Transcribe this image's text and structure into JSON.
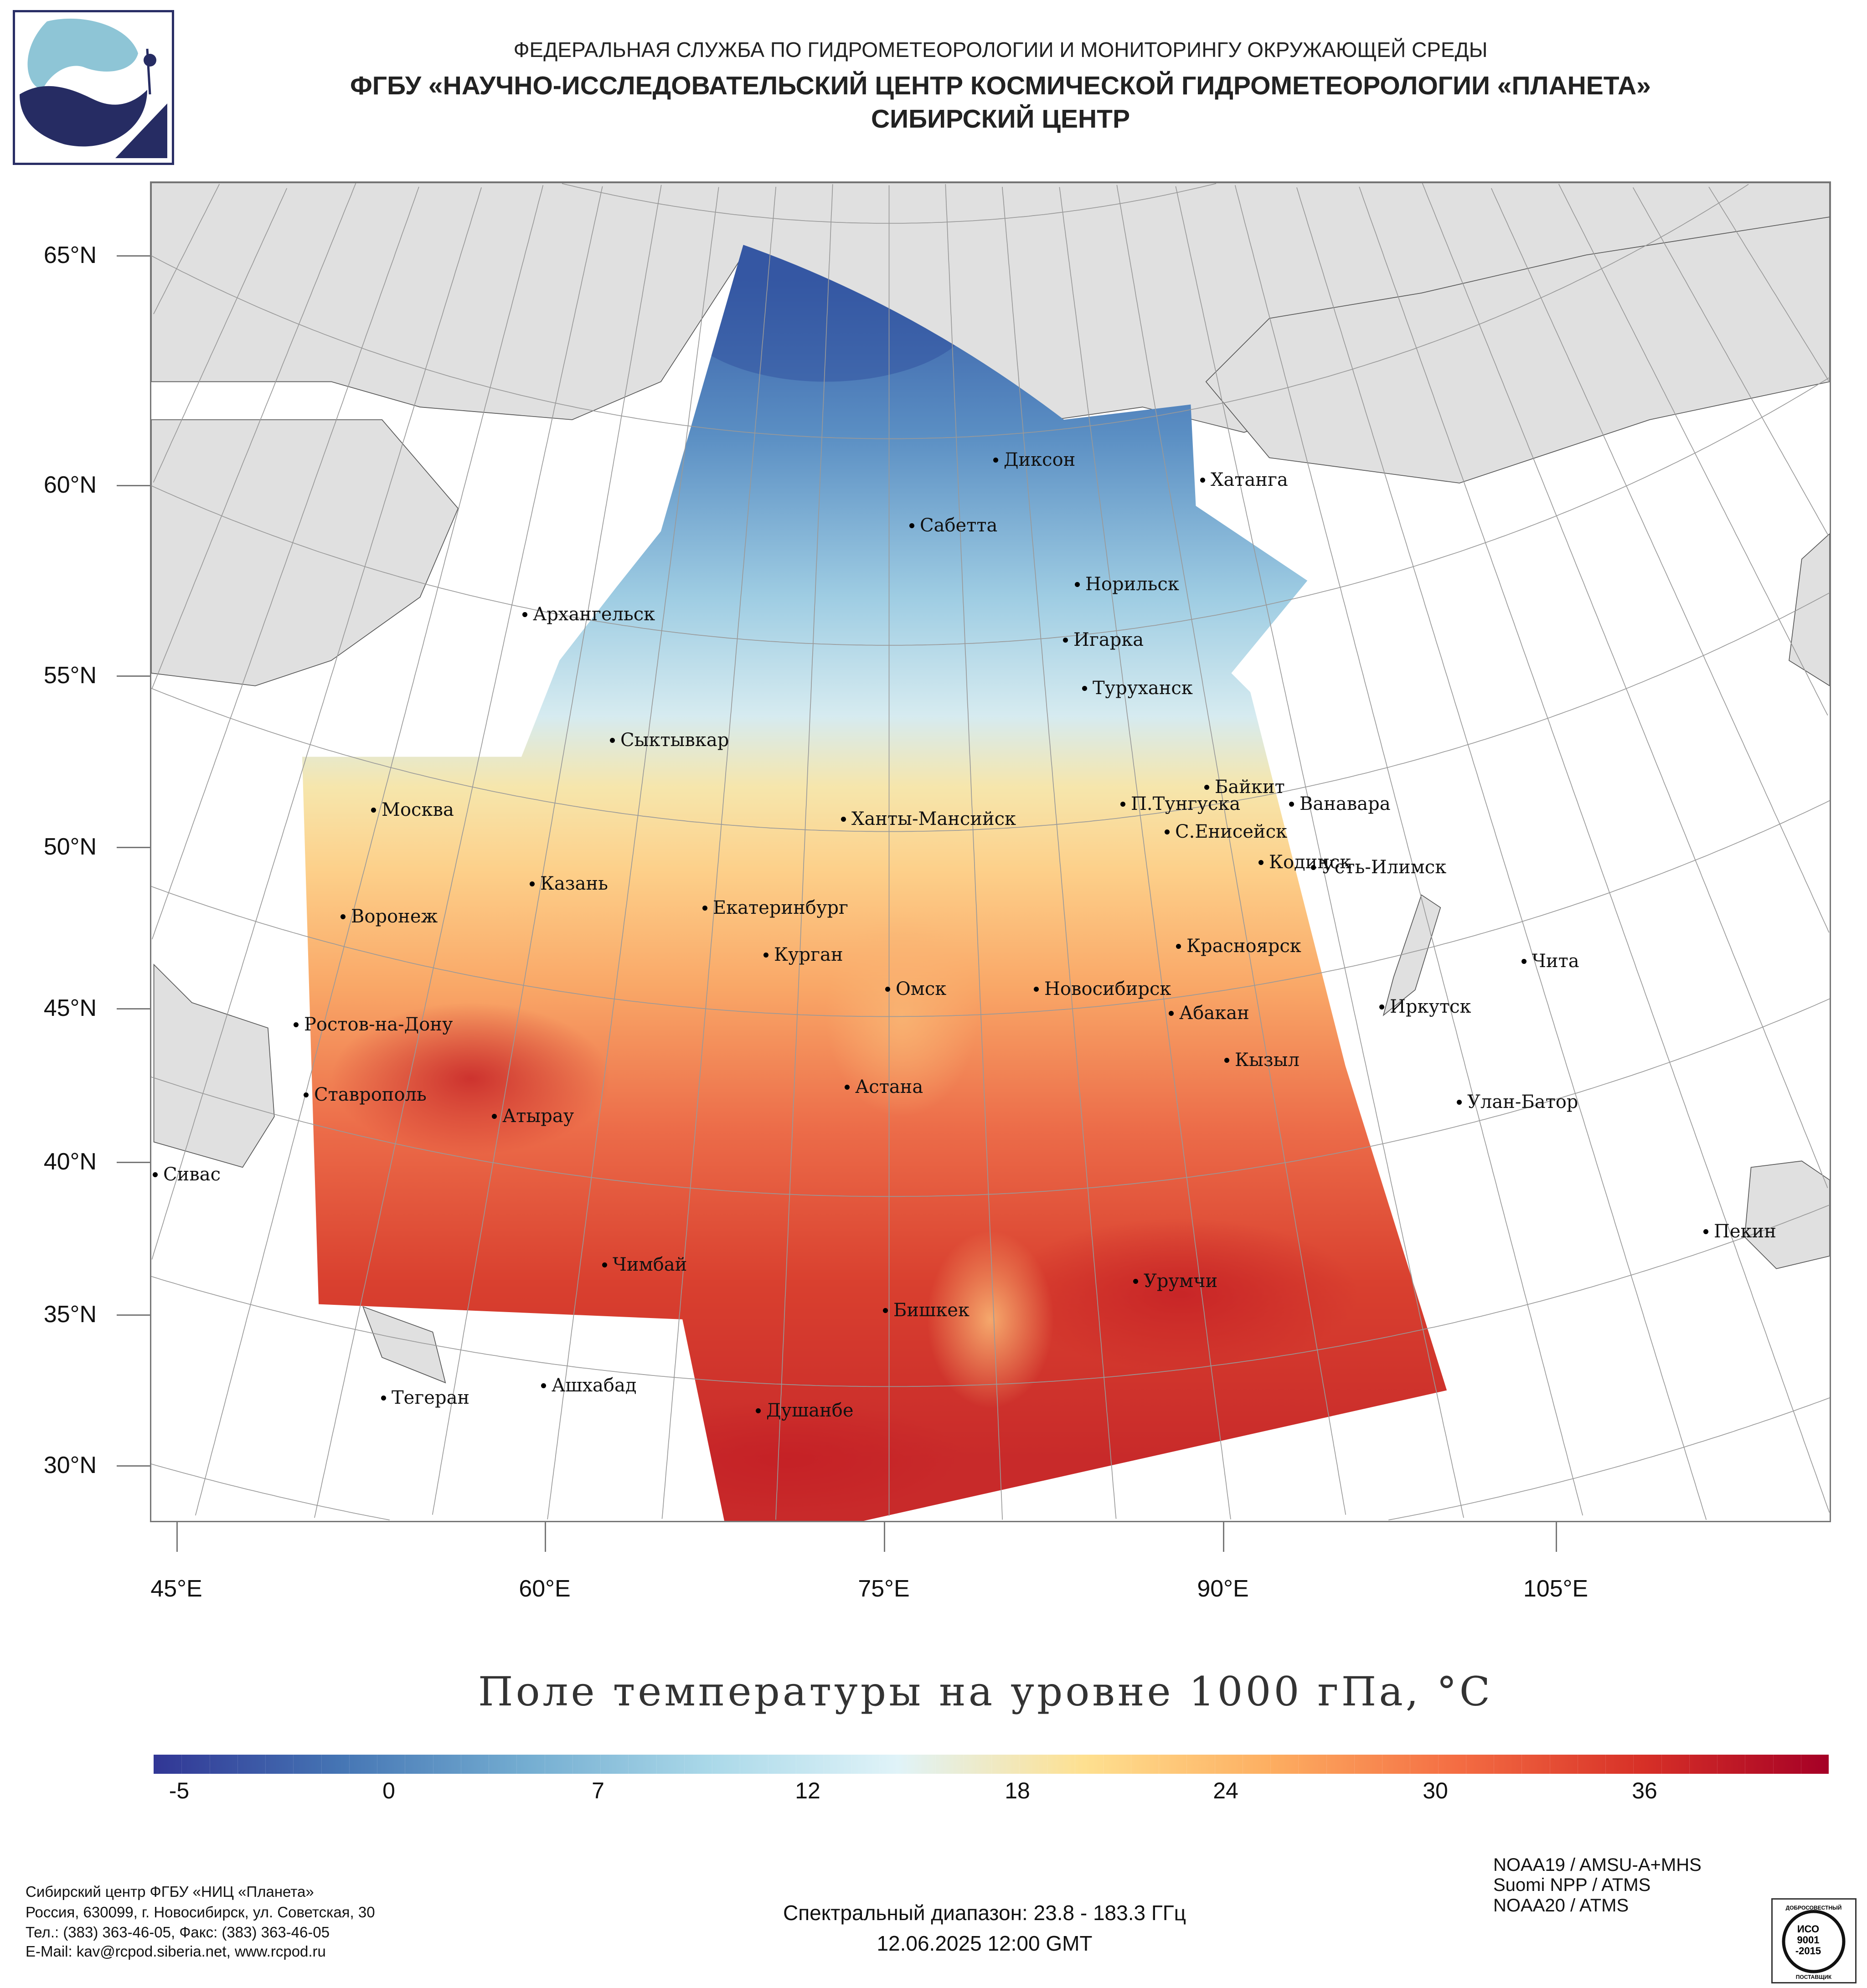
{
  "header": {
    "line1": "ФЕДЕРАЛЬНАЯ СЛУЖБА ПО ГИДРОМЕТЕОРОЛОГИИ И МОНИТОРИНГУ ОКРУЖАЮЩЕЙ СРЕДЫ",
    "line2": "ФГБУ «НАУЧНО-ИССЛЕДОВАТЕЛЬСКИЙ ЦЕНТР КОСМИЧЕСКОЙ ГИДРОМЕТЕОРОЛОГИИ «ПЛАНЕТА»",
    "line3": "СИБИРСКИЙ ЦЕНТР"
  },
  "map": {
    "lat_labels": [
      "65°N",
      "60°N",
      "55°N",
      "50°N",
      "45°N",
      "40°N",
      "35°N",
      "30°N"
    ],
    "lon_labels": [
      "45°E",
      "60°E",
      "75°E",
      "90°E",
      "105°E"
    ],
    "cities": [
      "Диксон",
      "Хатанга",
      "Сабетта",
      "Норильск",
      "Архангельск",
      "Игарка",
      "Туруханск",
      "Сыктывкар",
      "Байкит",
      "П.Тунгуска",
      "Ванавара",
      "Москва",
      "Ханты-Мансийск",
      "С.Енисейск",
      "Кодинск",
      "Усть-Илимск",
      "Казань",
      "Екатеринбург",
      "Воронеж",
      "Красноярск",
      "Курган",
      "Чита",
      "Омск",
      "Новосибирск",
      "Иркутск",
      "Абакан",
      "Ростов-на-Дону",
      "Кызыл",
      "Астана",
      "Ставрополь",
      "Улан-Батор",
      "Атырау",
      "Сивас",
      "Пекин",
      "Чимбай",
      "Урумчи",
      "Бишкек",
      "Ашхабад",
      "Тегеран",
      "Душанбе"
    ]
  },
  "title": "Поле температуры на уровне 1000 гПа, °С",
  "colorbar": {
    "ticks": [
      "-5",
      "0",
      "7",
      "12",
      "18",
      "24",
      "30",
      "36"
    ],
    "colors": [
      "#313695",
      "#4575b4",
      "#74add1",
      "#abd9e9",
      "#e0f3f8",
      "#fee090",
      "#fdae61",
      "#f46d43",
      "#d73027",
      "#a50026"
    ]
  },
  "footer": {
    "org": [
      "Сибирский центр ФГБУ «НИЦ «Планета»",
      "Россия, 630099, г. Новосибирск, ул. Советская, 30",
      "Тел.: (383) 363-46-05, Факс: (383) 363-46-05",
      "E-Mail: kav@rcpod.siberia.net, www.rcpod.ru"
    ],
    "spectral": "Спектральный диапазон: 23.8 - 183.3 ГГц",
    "datetime": "12.06.2025 12:00 GMT",
    "satellites": [
      "NOAA19 / AMSU-A+MHS",
      "Suomi NPP / ATMS",
      "NOAA20 / ATMS"
    ],
    "iso": {
      "top": "ДОБРОСОВЕСТНЫЙ",
      "l1": "ИСО",
      "l2": "9001",
      "l3": "-2015",
      "bottom": "ПОСТАВЩИК"
    }
  }
}
